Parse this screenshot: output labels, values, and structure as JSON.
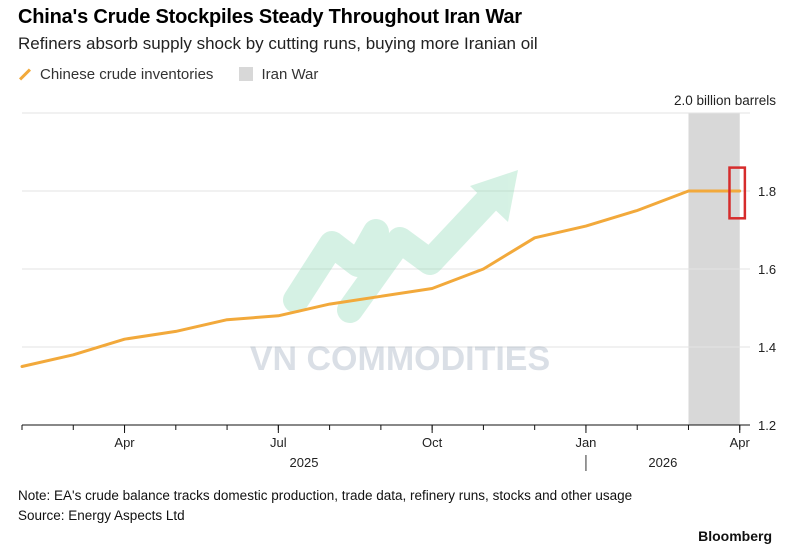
{
  "chart_data": {
    "type": "line",
    "title": "China's Crude Stockpiles Steady Throughout Iran War",
    "subtitle": "Refiners absorb supply shock by cutting runs, buying more Iranian oil",
    "unit_label": "2.0 billion barrels",
    "legend": {
      "line_label": "Chinese crude inventories",
      "shade_label": "Iran War"
    },
    "colors": {
      "line": "#f2a93b",
      "shade": "#d8d8d8",
      "highlight": "#d62c2c",
      "grid": "#e3e3e3"
    },
    "x_domain": [
      0,
      14.2
    ],
    "ylim": [
      1.2,
      2.0
    ],
    "y_ticks": [
      {
        "value": 1.2,
        "label": "1.2"
      },
      {
        "value": 1.4,
        "label": "1.4"
      },
      {
        "value": 1.6,
        "label": "1.6"
      },
      {
        "value": 1.8,
        "label": "1.8"
      },
      {
        "value": 2.0,
        "label": ""
      }
    ],
    "x_ticks": [
      {
        "value": 2,
        "label": "Apr"
      },
      {
        "value": 5,
        "label": "Jul"
      },
      {
        "value": 8,
        "label": "Oct"
      },
      {
        "value": 11,
        "label": "Jan"
      },
      {
        "value": 14,
        "label": "Apr"
      }
    ],
    "year_labels": [
      {
        "value": 5.5,
        "label": "2025"
      },
      {
        "value": 12.5,
        "label": "2026"
      }
    ],
    "year_divider": 11,
    "shaded_region": [
      13,
      14
    ],
    "highlight_box": {
      "x_range": [
        13.8,
        14.1
      ],
      "y_range": [
        1.73,
        1.86
      ]
    },
    "series": [
      {
        "name": "Chinese crude inventories",
        "x": [
          0,
          1,
          2,
          3,
          4,
          5,
          6,
          7,
          8,
          9,
          10,
          11,
          12,
          13,
          14
        ],
        "values": [
          1.35,
          1.38,
          1.42,
          1.44,
          1.47,
          1.48,
          1.51,
          1.53,
          1.55,
          1.6,
          1.68,
          1.71,
          1.75,
          1.8,
          1.8
        ]
      }
    ]
  },
  "watermark": {
    "text": "VN COMMODITIES"
  },
  "footer": {
    "note": "Note: EA's crude balance tracks domestic production, trade data, refinery runs, stocks and other usage",
    "source": "Source: Energy Aspects Ltd",
    "brand": "Bloomberg"
  }
}
